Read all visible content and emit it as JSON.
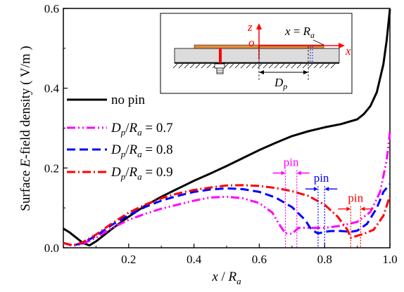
{
  "chart_data": {
    "type": "line",
    "xlabel": "x / R_a",
    "ylabel": "Surface E-field density ( V/m )",
    "xlim": [
      0.0,
      1.0
    ],
    "ylim": [
      0.0,
      0.6
    ],
    "x_ticks": [
      "0.2",
      "0.4",
      "0.6",
      "0.8",
      "1.0"
    ],
    "y_ticks": [
      "0.0",
      "0.2",
      "0.4",
      "0.6"
    ],
    "grid": false,
    "legend_position": "left",
    "series": [
      {
        "name": "no pin",
        "color": "#000000",
        "dash": "solid",
        "points": [
          [
            0,
            0.048
          ],
          [
            0.02,
            0.038
          ],
          [
            0.04,
            0.025
          ],
          [
            0.06,
            0.012
          ],
          [
            0.08,
            0.006
          ],
          [
            0.1,
            0.016
          ],
          [
            0.15,
            0.048
          ],
          [
            0.2,
            0.078
          ],
          [
            0.25,
            0.105
          ],
          [
            0.3,
            0.128
          ],
          [
            0.35,
            0.148
          ],
          [
            0.4,
            0.168
          ],
          [
            0.45,
            0.186
          ],
          [
            0.5,
            0.205
          ],
          [
            0.55,
            0.225
          ],
          [
            0.6,
            0.245
          ],
          [
            0.65,
            0.263
          ],
          [
            0.7,
            0.28
          ],
          [
            0.75,
            0.292
          ],
          [
            0.8,
            0.302
          ],
          [
            0.85,
            0.31
          ],
          [
            0.9,
            0.322
          ],
          [
            0.92,
            0.335
          ],
          [
            0.94,
            0.355
          ],
          [
            0.96,
            0.39
          ],
          [
            0.98,
            0.46
          ],
          [
            0.99,
            0.52
          ],
          [
            1.0,
            0.598
          ]
        ]
      },
      {
        "name": "D_p/R_a = 0.7",
        "color": "#ff00ff",
        "dash": "dashdotdot",
        "points": [
          [
            0,
            0.012
          ],
          [
            0.03,
            0.005
          ],
          [
            0.06,
            0.01
          ],
          [
            0.1,
            0.025
          ],
          [
            0.15,
            0.05
          ],
          [
            0.2,
            0.07
          ],
          [
            0.25,
            0.085
          ],
          [
            0.3,
            0.098
          ],
          [
            0.35,
            0.108
          ],
          [
            0.4,
            0.118
          ],
          [
            0.45,
            0.126
          ],
          [
            0.5,
            0.128
          ],
          [
            0.55,
            0.124
          ],
          [
            0.6,
            0.112
          ],
          [
            0.64,
            0.088
          ],
          [
            0.66,
            0.06
          ],
          [
            0.68,
            0.036
          ],
          [
            0.7,
            0.035
          ],
          [
            0.72,
            0.05
          ],
          [
            0.75,
            0.05
          ],
          [
            0.8,
            0.05
          ],
          [
            0.85,
            0.055
          ],
          [
            0.9,
            0.065
          ],
          [
            0.94,
            0.09
          ],
          [
            0.97,
            0.14
          ],
          [
            0.99,
            0.22
          ],
          [
            1.0,
            0.29
          ]
        ]
      },
      {
        "name": "D_p/R_a = 0.8",
        "color": "#0000ff",
        "dash": "dashed",
        "points": [
          [
            0,
            0.012
          ],
          [
            0.03,
            0.006
          ],
          [
            0.06,
            0.012
          ],
          [
            0.1,
            0.03
          ],
          [
            0.15,
            0.058
          ],
          [
            0.2,
            0.082
          ],
          [
            0.25,
            0.102
          ],
          [
            0.3,
            0.118
          ],
          [
            0.35,
            0.13
          ],
          [
            0.4,
            0.14
          ],
          [
            0.45,
            0.146
          ],
          [
            0.5,
            0.149
          ],
          [
            0.55,
            0.147
          ],
          [
            0.6,
            0.14
          ],
          [
            0.65,
            0.126
          ],
          [
            0.7,
            0.102
          ],
          [
            0.74,
            0.07
          ],
          [
            0.76,
            0.045
          ],
          [
            0.78,
            0.036
          ],
          [
            0.8,
            0.04
          ],
          [
            0.82,
            0.042
          ],
          [
            0.85,
            0.042
          ],
          [
            0.88,
            0.04
          ],
          [
            0.9,
            0.043
          ],
          [
            0.93,
            0.06
          ],
          [
            0.96,
            0.1
          ],
          [
            0.98,
            0.14
          ],
          [
            1.0,
            0.16
          ]
        ]
      },
      {
        "name": "D_p/R_a = 0.9",
        "color": "#ff0000",
        "dash": "dashdot",
        "points": [
          [
            0,
            0.012
          ],
          [
            0.03,
            0.006
          ],
          [
            0.06,
            0.014
          ],
          [
            0.1,
            0.033
          ],
          [
            0.15,
            0.062
          ],
          [
            0.2,
            0.088
          ],
          [
            0.25,
            0.108
          ],
          [
            0.3,
            0.124
          ],
          [
            0.35,
            0.136
          ],
          [
            0.4,
            0.145
          ],
          [
            0.45,
            0.151
          ],
          [
            0.5,
            0.156
          ],
          [
            0.55,
            0.157
          ],
          [
            0.6,
            0.155
          ],
          [
            0.65,
            0.15
          ],
          [
            0.7,
            0.142
          ],
          [
            0.75,
            0.13
          ],
          [
            0.8,
            0.108
          ],
          [
            0.84,
            0.078
          ],
          [
            0.87,
            0.045
          ],
          [
            0.88,
            0.025
          ],
          [
            0.9,
            0.03
          ],
          [
            0.92,
            0.035
          ],
          [
            0.95,
            0.045
          ],
          [
            0.98,
            0.08
          ],
          [
            1.0,
            0.13
          ]
        ]
      }
    ],
    "annotations": {
      "pin_label": "pin",
      "pins": [
        {
          "color": "#ff00ff",
          "x1": 0.68,
          "x2": 0.715,
          "label_y": 0.205
        },
        {
          "color": "#0000ff",
          "x1": 0.78,
          "x2": 0.8,
          "label_y": 0.165
        },
        {
          "color": "#ff0000",
          "x1": 0.88,
          "x2": 0.91,
          "label_y": 0.115
        }
      ]
    },
    "inset": {
      "z_label": "z",
      "o_label": "o",
      "x_label": "x",
      "xeq_label": "x = R_a",
      "dp_label": "D_p"
    }
  }
}
